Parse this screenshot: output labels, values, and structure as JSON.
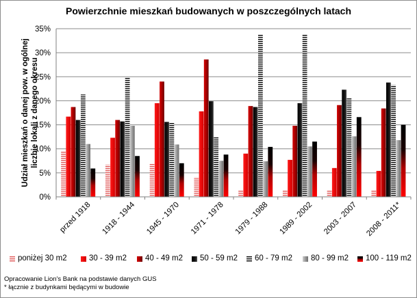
{
  "chart_data": {
    "type": "bar",
    "title": "Powierzchnie mieszkań budowanych w poszczególnych latach",
    "ylabel": "Udział mieszkań o danej pow. w ogólnej liczbie lokali z danego okresu",
    "xlabel": "",
    "ylim": [
      0,
      35
    ],
    "yticks": [
      "0%",
      "5%",
      "10%",
      "15%",
      "20%",
      "25%",
      "30%",
      "35%"
    ],
    "grid": true,
    "legend": "bottom",
    "categories": [
      "przed 1918",
      "1918 - 1944",
      "1945 - 1970",
      "1971 - 1978",
      "1979 - 1988",
      "1989 - 2002",
      "2003 - 2007",
      "2008 - 2011*"
    ],
    "series": [
      {
        "name": "poniżej 30 m2",
        "values": [
          9.5,
          6.7,
          7.0,
          4.1,
          1.3,
          1.3,
          1.4,
          1.3
        ],
        "color": "#e97f7f",
        "pattern": "hstripe-red"
      },
      {
        "name": "30 - 39 m2",
        "values": [
          16.7,
          12.3,
          19.5,
          17.8,
          9.0,
          7.7,
          6.0,
          5.4
        ],
        "color": "#ff0000",
        "pattern": "grad-red"
      },
      {
        "name": "40 - 49 m2",
        "values": [
          18.7,
          16.0,
          24.0,
          28.6,
          18.9,
          14.8,
          19.1,
          18.4
        ],
        "color": "#c00000",
        "pattern": "dark-red"
      },
      {
        "name": "50 - 59 m2",
        "values": [
          16.0,
          15.7,
          15.6,
          19.9,
          18.7,
          19.5,
          22.3,
          23.8
        ],
        "color": "#000000",
        "pattern": "black-grad"
      },
      {
        "name": "60 - 79 m2",
        "values": [
          21.3,
          24.9,
          15.4,
          12.4,
          33.8,
          33.8,
          20.6,
          23.3
        ],
        "color": "#777777",
        "pattern": "hstripe-black"
      },
      {
        "name": "80 - 99 m2",
        "values": [
          11.0,
          14.8,
          10.9,
          7.5,
          7.4,
          10.5,
          12.6,
          11.8
        ],
        "color": "#a6a6a6",
        "pattern": "grey"
      },
      {
        "name": "100 - 119 m2",
        "values": [
          5.9,
          8.5,
          7.0,
          8.8,
          10.4,
          11.5,
          16.6,
          15.0
        ],
        "color": "#000000",
        "pattern": "black-red"
      }
    ]
  },
  "notes": {
    "source": "Opracowanie Lion's Bank na podstawie danych GUS",
    "footnote": "* łącznie z budynkami będącymi w budowie"
  }
}
